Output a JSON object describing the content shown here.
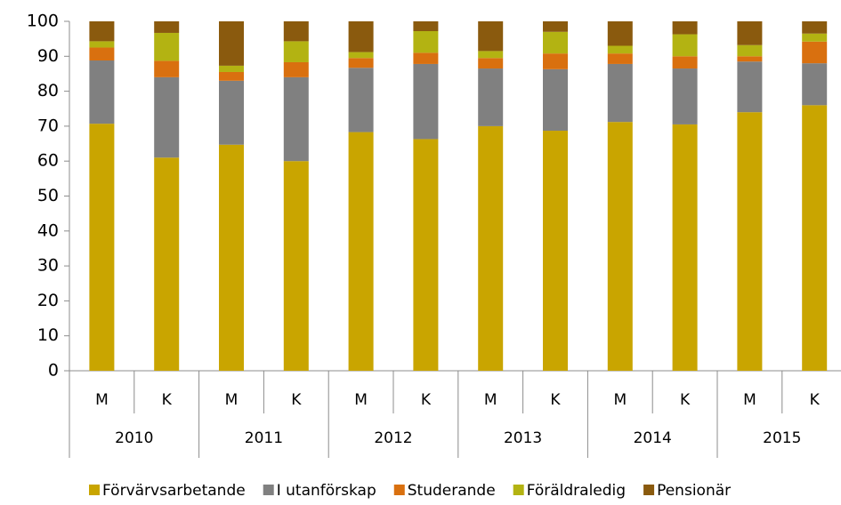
{
  "chart_data": {
    "type": "stacked_bar",
    "categories": [
      "M",
      "K",
      "M",
      "K",
      "M",
      "K",
      "M",
      "K",
      "M",
      "K",
      "M",
      "K"
    ],
    "groups": [
      "2010",
      "2011",
      "2012",
      "2013",
      "2014",
      "2015"
    ],
    "series": [
      {
        "name": "Förvärvsarbetande",
        "color": "#c9a500",
        "values": [
          70.7,
          61,
          64.7,
          60,
          68.3,
          66.3,
          70,
          68.7,
          71.2,
          70.5,
          74,
          76
        ]
      },
      {
        "name": "I utanförskap",
        "color": "#808080",
        "values": [
          18.1,
          23,
          18.3,
          24,
          18.4,
          21.5,
          16.5,
          17.6,
          16.6,
          16,
          14.5,
          12
        ]
      },
      {
        "name": "Studerande",
        "color": "#d9700f",
        "values": [
          3.7,
          4.7,
          2.5,
          4.3,
          2.8,
          3.2,
          3,
          4.5,
          3,
          3.5,
          1.5,
          6.2
        ]
      },
      {
        "name": "Föräldraledig",
        "color": "#b3b312",
        "values": [
          1.8,
          8,
          1.8,
          6,
          1.7,
          6.2,
          2,
          6.2,
          2.2,
          6.3,
          3.2,
          2.3
        ]
      },
      {
        "name": "Pensionär",
        "color": "#8a5a0e",
        "values": [
          5.7,
          3.3,
          12.7,
          5.7,
          8.8,
          2.8,
          8.5,
          3,
          7,
          3.7,
          6.8,
          3.5
        ]
      }
    ],
    "ylim": [
      0,
      100
    ],
    "yticks": [
      0,
      10,
      20,
      30,
      40,
      50,
      60,
      70,
      80,
      90,
      100
    ],
    "legend": "bottom"
  }
}
